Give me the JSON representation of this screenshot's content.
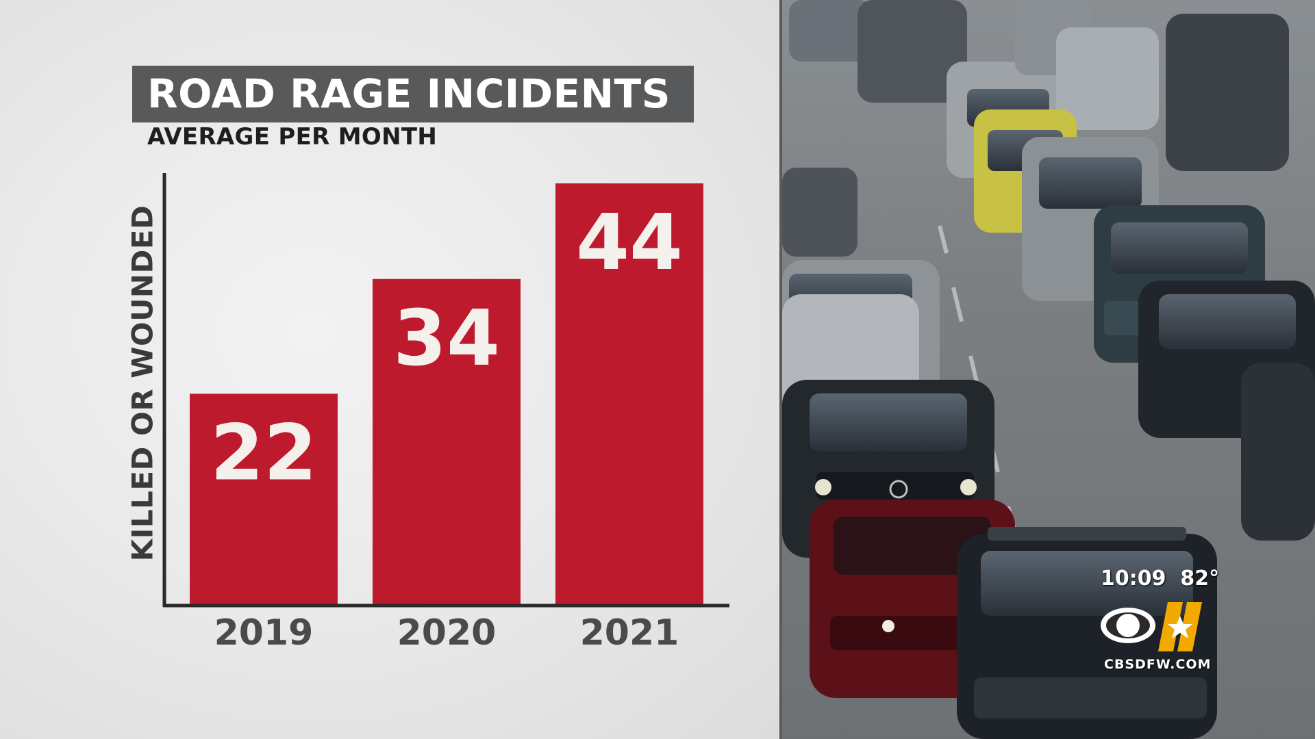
{
  "chart_data": {
    "type": "bar",
    "title": "ROAD RAGE INCIDENTS",
    "subtitle": "AVERAGE PER MONTH",
    "ylabel": "KILLED OR WOUNDED",
    "xlabel": "",
    "categories": [
      "2019",
      "2020",
      "2021"
    ],
    "values": [
      22,
      34,
      44
    ],
    "ylim": [
      0,
      44
    ],
    "grid": false,
    "bar_color": "#be1a2e",
    "value_label_color": "#f4f1ec"
  },
  "overlay": {
    "time": "10:09",
    "temperature": "82°",
    "station_site": "CBSDFW.COM",
    "logo_number": "11"
  },
  "colors": {
    "title_box": "#58595b",
    "axis": "#2a2a2a",
    "logo_gold": "#f2a900"
  }
}
